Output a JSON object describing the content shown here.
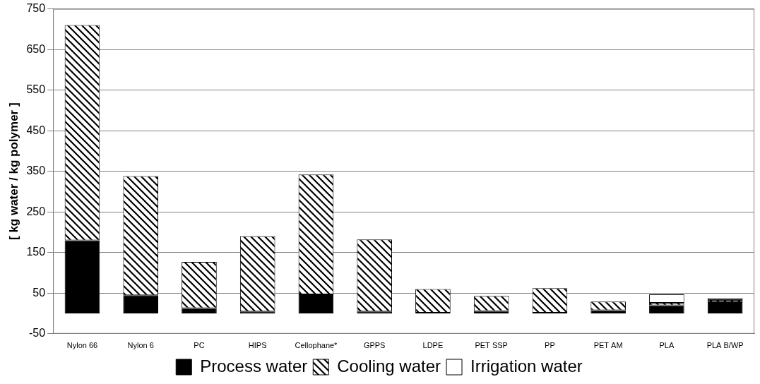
{
  "chart_data": {
    "type": "bar",
    "stacked": true,
    "ylabel": "[ kg water / kg polymer ]",
    "categories": [
      "Nylon 66",
      "Nylon 6",
      "PC",
      "HIPS",
      "Cellophane*",
      "GPPS",
      "LDPE",
      "PET SSP",
      "PP",
      "PET AM",
      "PLA",
      "PLA B/WP"
    ],
    "series": [
      {
        "name": "Process water",
        "color": "#000000",
        "values": [
          180,
          45,
          13,
          5,
          47,
          5,
          2,
          6,
          2,
          8,
          20,
          28
        ]
      },
      {
        "name": "Cooling water",
        "color": "#000000",
        "values": [
          530,
          293,
          114,
          185,
          295,
          177,
          58,
          37,
          60,
          21,
          6,
          5
        ]
      },
      {
        "name": "Irrigation water",
        "color": "#ffffff",
        "values": [
          0,
          0,
          0,
          0,
          0,
          0,
          0,
          0,
          0,
          0,
          21,
          5
        ]
      }
    ],
    "ylim": [
      -50,
      750
    ],
    "yticks": [
      -50,
      50,
      150,
      250,
      350,
      450,
      550,
      650,
      750
    ],
    "grid": true,
    "legend": "bottom"
  }
}
